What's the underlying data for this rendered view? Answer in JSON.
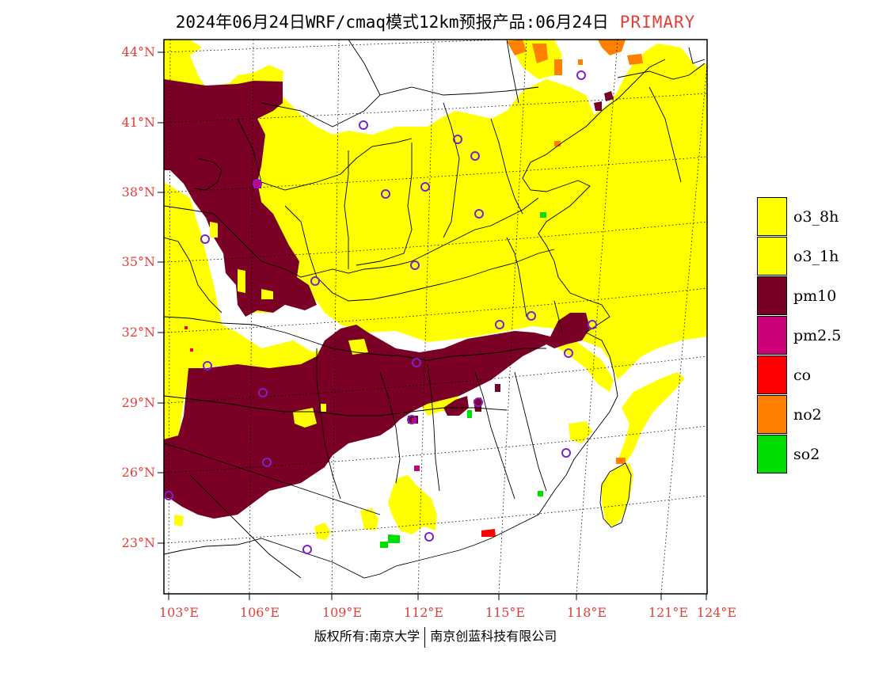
{
  "title": {
    "main": "2024年06月24日WRF/cmaq模式12km预报产品:06月24日",
    "highlight": "PRIMARY"
  },
  "latitude_labels": [
    "44°N",
    "41°N",
    "38°N",
    "35°N",
    "32°N",
    "29°N",
    "26°N",
    "23°N"
  ],
  "longitude_labels": [
    "103°E",
    "106°E",
    "109°E",
    "112°E",
    "115°E",
    "118°E",
    "121°E",
    "124°E"
  ],
  "legend": [
    {
      "label": "o3_8h",
      "color": "#ffff00"
    },
    {
      "label": "o3_1h",
      "color": "#ffff00"
    },
    {
      "label": "pm10",
      "color": "#7a0026"
    },
    {
      "label": "pm2.5",
      "color": "#cc0077"
    },
    {
      "label": "co",
      "color": "#ff0000"
    },
    {
      "label": "no2",
      "color": "#ff7f00"
    },
    {
      "label": "so2",
      "color": "#00dd00"
    }
  ],
  "footer": {
    "left": "版权所有:南京大学",
    "right": "南京创蓝科技有限公司"
  }
}
